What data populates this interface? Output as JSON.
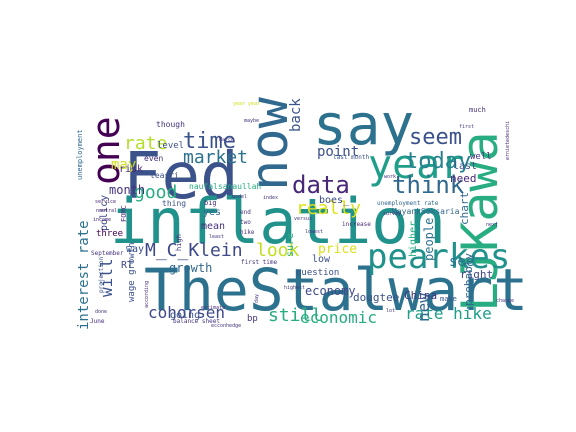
{
  "word_cloud": {
    "words": [
      {
        "text": "Fed",
        "color": "#3b528b"
      },
      {
        "text": "inflation",
        "color": "#21918c"
      },
      {
        "text": "TheStalwart",
        "color": "#2c728e"
      },
      {
        "text": "say",
        "color": "#2c728e"
      },
      {
        "text": "LJKawa",
        "color": "#27ad81"
      },
      {
        "text": "now",
        "color": "#31688e"
      },
      {
        "text": "one",
        "color": "#440154"
      },
      {
        "text": "year",
        "color": "#1f9e89"
      },
      {
        "text": "pearkes",
        "color": "#21918c"
      },
      {
        "text": "data",
        "color": "#482878"
      },
      {
        "text": "think",
        "color": "#31688e"
      },
      {
        "text": "time",
        "color": "#3b528b"
      },
      {
        "text": "seem",
        "color": "#3b528b"
      },
      {
        "text": "today",
        "color": "#26828e"
      },
      {
        "text": "rate",
        "color": "#b5de2b"
      },
      {
        "text": "market",
        "color": "#2c728e"
      },
      {
        "text": "M_C_Klein",
        "color": "#3e4989"
      },
      {
        "text": "look",
        "color": "#c2df23"
      },
      {
        "text": "really",
        "color": "#dde318"
      },
      {
        "text": "good",
        "color": "#27ad81"
      },
      {
        "text": "will",
        "color": "#3b528b"
      },
      {
        "text": "interest rate",
        "color": "#2c728e"
      },
      {
        "text": "cohorsen",
        "color": "#3e4989"
      },
      {
        "text": "still",
        "color": "#27ad81"
      },
      {
        "text": "economic",
        "color": "#27ad81"
      },
      {
        "text": "rate hike",
        "color": "#1f9e89"
      },
      {
        "text": "new",
        "color": "#31688e"
      },
      {
        "text": "see",
        "color": "#2c728e"
      },
      {
        "text": "back",
        "color": "#3b528b"
      },
      {
        "text": "point",
        "color": "#3b528b"
      },
      {
        "text": "may",
        "color": "#d0e11c"
      },
      {
        "text": "month",
        "color": "#46337e"
      },
      {
        "text": "economy",
        "color": "#3e4989"
      },
      {
        "text": "growth",
        "color": "#31688e"
      },
      {
        "text": "price",
        "color": "#d8e219"
      },
      {
        "text": "dougtee",
        "color": "#3b528b"
      },
      {
        "text": "China",
        "color": "#46337e"
      },
      {
        "text": "people",
        "color": "#2c728e"
      },
      {
        "text": "right",
        "color": "#3e4989"
      },
      {
        "text": "probably",
        "color": "#31688e"
      },
      {
        "text": "chart",
        "color": "#31688e"
      },
      {
        "text": "higher",
        "color": "#27ad81"
      },
      {
        "text": "need",
        "color": "#482878"
      },
      {
        "text": "last",
        "color": "#3b528b"
      },
      {
        "text": "policy",
        "color": "#3e4989"
      },
      {
        "text": "risk",
        "color": "#482878"
      },
      {
        "text": "RT",
        "color": "#3e4989"
      },
      {
        "text": "yes",
        "color": "#31688e"
      },
      {
        "text": "mean",
        "color": "#46337e"
      },
      {
        "text": "going",
        "color": "#3b528b"
      },
      {
        "text": "way",
        "color": "#3b528b"
      },
      {
        "text": "boes_",
        "color": "#3e4989"
      },
      {
        "text": "question",
        "color": "#3b528b"
      },
      {
        "text": "sure",
        "color": "#27ad81"
      },
      {
        "text": "low",
        "color": "#3b528b"
      },
      {
        "text": "well",
        "color": "#46337e"
      },
      {
        "text": "bp",
        "color": "#46337e"
      },
      {
        "text": "three",
        "color": "#440154"
      },
      {
        "text": "wage growth",
        "color": "#3b528b"
      },
      {
        "text": "level",
        "color": "#3b528b"
      },
      {
        "text": "even",
        "color": "#46337e"
      },
      {
        "text": "though",
        "color": "#46337e"
      },
      {
        "text": "naufalsanaullah",
        "color": "#27ad81"
      },
      {
        "text": "teasri",
        "color": "#3b528b"
      },
      {
        "text": "thing",
        "color": "#3b528b"
      },
      {
        "text": "MayankSeksaria",
        "color": "#31688e"
      },
      {
        "text": "unemployment",
        "color": "#31688e"
      },
      {
        "text": "FOMC",
        "color": "#482878"
      },
      {
        "text": "September",
        "color": "#46337e"
      },
      {
        "text": "projection",
        "color": "#3b528b"
      },
      {
        "text": "big",
        "color": "#46337e"
      },
      {
        "text": "high",
        "color": "#46337e"
      },
      {
        "text": "increase",
        "color": "#482878"
      },
      {
        "text": "first time",
        "color": "#46337e"
      },
      {
        "text": "last month",
        "color": "#3b528b"
      },
      {
        "text": "unemployment rate",
        "color": "#31688e"
      },
      {
        "text": "make",
        "color": "#3b528b"
      },
      {
        "text": "much",
        "color": "#46337e"
      },
      {
        "text": "balance sheet",
        "color": "#46337e"
      },
      {
        "text": "according",
        "color": "#482878"
      },
      {
        "text": "June",
        "color": "#482878"
      },
      {
        "text": "service",
        "color": "#482878"
      },
      {
        "text": "neutral",
        "color": "#482878"
      },
      {
        "text": "income",
        "color": "#482878"
      },
      {
        "text": "least",
        "color": "#46337e"
      },
      {
        "text": "model",
        "color": "#46337e"
      },
      {
        "text": "index",
        "color": "#46337e"
      },
      {
        "text": "survey",
        "color": "#46337e"
      },
      {
        "text": "highest",
        "color": "#46337e"
      },
      {
        "text": "lowest",
        "color": "#46337e"
      },
      {
        "text": "work",
        "color": "#46337e"
      },
      {
        "text": "year year",
        "color": "#d0e11c"
      },
      {
        "text": "change",
        "color": "#46337e"
      },
      {
        "text": "next",
        "color": "#46337e"
      },
      {
        "text": "first",
        "color": "#46337e"
      },
      {
        "text": "maybe",
        "color": "#46337e"
      },
      {
        "text": "March",
        "color": "#46337e"
      },
      {
        "text": "ecconhedge",
        "color": "#46337e"
      },
      {
        "text": "ernietedeschi",
        "color": "#482878"
      },
      {
        "text": "versus",
        "color": "#46337e"
      },
      {
        "text": "end",
        "color": "#46337e"
      },
      {
        "text": "two",
        "color": "#46337e"
      },
      {
        "text": "hike",
        "color": "#46337e"
      },
      {
        "text": "day",
        "color": "#46337e"
      },
      {
        "text": "done",
        "color": "#46337e"
      },
      {
        "text": "lot",
        "color": "#46337e"
      },
      {
        "text": "estimate",
        "color": "#46337e"
      }
    ]
  }
}
